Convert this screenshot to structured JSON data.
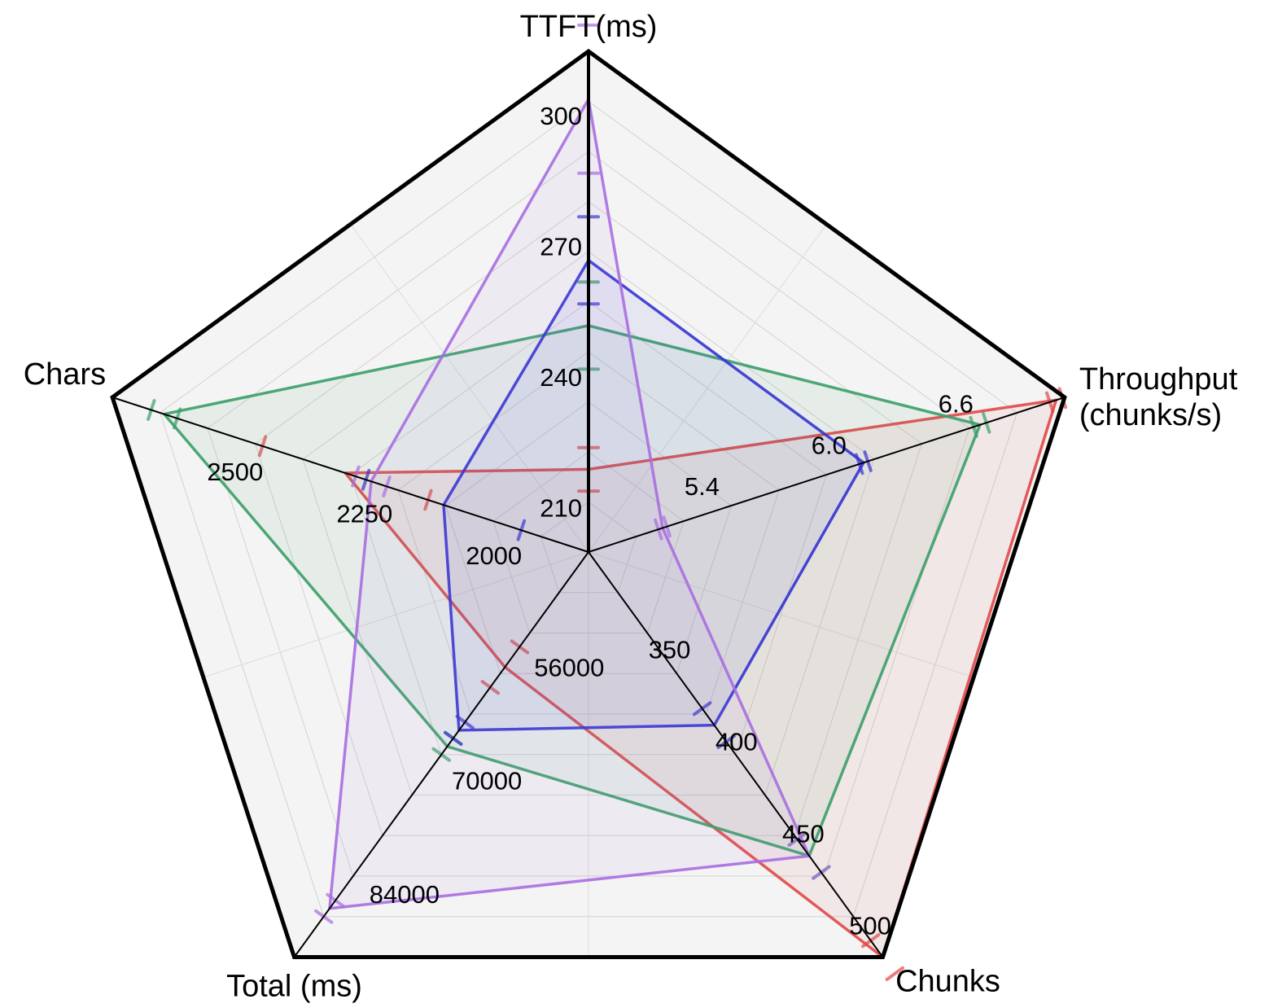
{
  "chart_data": {
    "type": "radar",
    "axes": [
      {
        "key": "ttft",
        "label": [
          "TTFT(ms)"
        ],
        "min": 200,
        "max": 315,
        "ticks": [
          210,
          240,
          270,
          300
        ],
        "tick_labels": [
          "210",
          "240",
          "270",
          "300"
        ]
      },
      {
        "key": "throughput",
        "label": [
          "Throughput",
          "(chunks/s)"
        ],
        "min": 4.75,
        "max": 7.0,
        "ticks": [
          5.4,
          6.0,
          6.6
        ],
        "tick_labels": [
          "5.4",
          "6.0",
          "6.6"
        ]
      },
      {
        "key": "chunks",
        "label": [
          "Chunks"
        ],
        "min": 310,
        "max": 530,
        "ticks": [
          350,
          400,
          450,
          500
        ],
        "tick_labels": [
          "350",
          "400",
          "450",
          "500"
        ]
      },
      {
        "key": "total",
        "label": [
          "Total (ms)"
        ],
        "min": 44000,
        "max": 94000,
        "ticks": [
          56000,
          70000,
          84000
        ],
        "tick_labels": [
          "56000",
          "70000",
          "84000"
        ]
      },
      {
        "key": "chars",
        "label": [
          "Chars"
        ],
        "min": 1880,
        "max": 2800,
        "ticks": [
          2000,
          2250,
          2500
        ],
        "tick_labels": [
          "2000",
          "2250",
          "2500"
        ]
      }
    ],
    "series": [
      {
        "color": "#e04848",
        "values": [
          219,
          6.96,
          530,
          58200,
          2350
        ],
        "errors": [
          5,
          0.03,
          9,
          2500,
          160
        ]
      },
      {
        "color": "#3a9e68",
        "values": [
          252,
          6.6,
          475,
          68000,
          2700
        ],
        "errors": [
          10,
          0.03,
          9,
          1000,
          25
        ]
      },
      {
        "color": "#3434d2",
        "values": [
          267,
          6.05,
          404,
          66000,
          2160
        ],
        "errors": [
          10,
          0.02,
          9,
          1000,
          150
        ]
      },
      {
        "color": "#a86ee0",
        "values": [
          304,
          5.1,
          475,
          88000,
          2300
        ],
        "errors": [
          17,
          0.02,
          9,
          1000,
          30
        ]
      }
    ],
    "grid": true,
    "legend": "none"
  }
}
